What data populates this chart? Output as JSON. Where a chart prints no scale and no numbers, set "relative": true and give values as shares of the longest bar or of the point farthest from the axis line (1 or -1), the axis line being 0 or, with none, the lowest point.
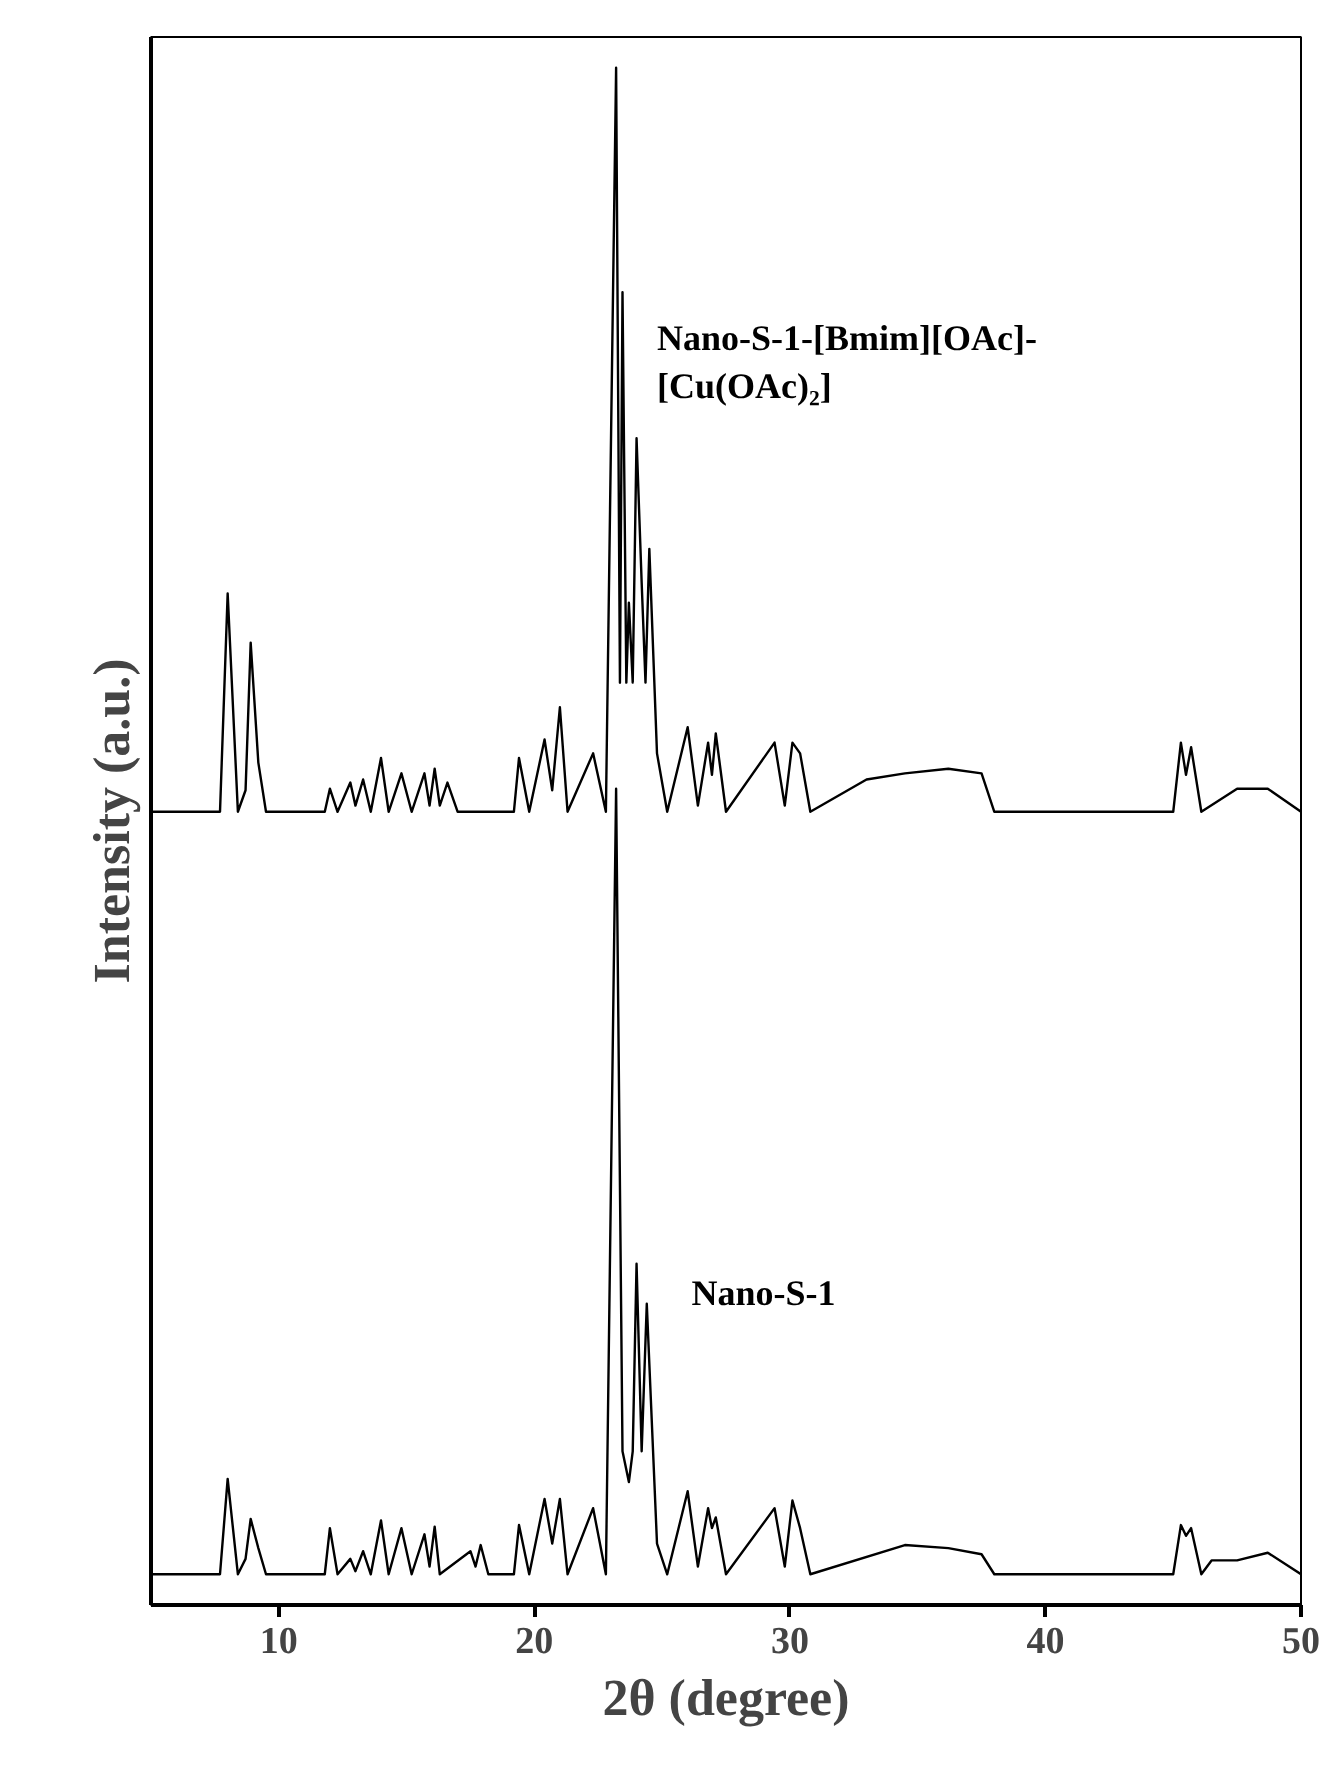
{
  "chart_data": {
    "type": "line",
    "relative": true,
    "xlabel": "2θ (degree)",
    "ylabel": "Intensity (a.u.)",
    "xlim": [
      5,
      50
    ],
    "xticks": [
      10,
      20,
      30,
      40,
      50
    ],
    "grid": false,
    "series": [
      {
        "name": "Nano-S-1-[Bmim][OAc]-[Cu(OAc)₂]",
        "color": "#000000",
        "x": [
          5,
          7.7,
          8.0,
          8.4,
          8.7,
          8.9,
          9.2,
          9.5,
          11.8,
          12.0,
          12.3,
          12.8,
          13.0,
          13.3,
          13.6,
          14.0,
          14.3,
          14.8,
          15.2,
          15.7,
          15.9,
          16.1,
          16.3,
          16.6,
          17,
          19.2,
          19.4,
          19.8,
          20.4,
          20.7,
          21.0,
          21.3,
          22.3,
          22.8,
          23.2,
          23.35,
          23.45,
          23.6,
          23.7,
          23.85,
          24.0,
          24.2,
          24.35,
          24.5,
          24.8,
          25.2,
          26.0,
          26.4,
          26.8,
          26.95,
          27.1,
          27.5,
          29.4,
          29.8,
          30.1,
          30.4,
          30.8,
          33,
          34.5,
          36.2,
          37.5,
          38,
          45.0,
          45.3,
          45.5,
          45.7,
          46.1,
          47.5,
          48.7,
          50
        ],
        "values": [
          0.516,
          0.516,
          0.658,
          0.516,
          0.53,
          0.626,
          0.548,
          0.516,
          0.516,
          0.531,
          0.516,
          0.535,
          0.52,
          0.537,
          0.516,
          0.551,
          0.516,
          0.541,
          0.516,
          0.541,
          0.52,
          0.544,
          0.52,
          0.535,
          0.516,
          0.516,
          0.551,
          0.516,
          0.563,
          0.53,
          0.584,
          0.516,
          0.554,
          0.516,
          1.0,
          0.6,
          0.854,
          0.6,
          0.652,
          0.6,
          0.759,
          0.665,
          0.6,
          0.687,
          0.554,
          0.516,
          0.571,
          0.52,
          0.561,
          0.54,
          0.567,
          0.516,
          0.561,
          0.52,
          0.561,
          0.554,
          0.516,
          0.537,
          0.541,
          0.544,
          0.541,
          0.516,
          0.516,
          0.561,
          0.54,
          0.558,
          0.516,
          0.531,
          0.531,
          0.516
        ]
      },
      {
        "name": "Nano-S-1",
        "color": "#000000",
        "x": [
          5,
          7.7,
          8.0,
          8.4,
          8.7,
          8.9,
          9.2,
          9.5,
          11.8,
          12.0,
          12.3,
          12.8,
          13.0,
          13.3,
          13.6,
          14.0,
          14.3,
          14.8,
          15.2,
          15.7,
          15.9,
          16.1,
          16.3,
          17.5,
          17.7,
          17.9,
          18.2,
          19.2,
          19.4,
          19.8,
          20.4,
          20.7,
          21.0,
          21.3,
          22.3,
          22.8,
          23.2,
          23.45,
          23.7,
          23.85,
          24.0,
          24.2,
          24.4,
          24.8,
          25.2,
          26.0,
          26.4,
          26.8,
          26.95,
          27.1,
          27.5,
          29.4,
          29.8,
          30.1,
          30.4,
          30.8,
          34.5,
          36.2,
          37.5,
          38,
          45.0,
          45.3,
          45.5,
          45.7,
          46.1,
          46.5,
          47.5,
          48.7,
          50
        ],
        "values": [
          0.02,
          0.02,
          0.082,
          0.02,
          0.03,
          0.056,
          0.037,
          0.02,
          0.02,
          0.05,
          0.02,
          0.03,
          0.022,
          0.035,
          0.02,
          0.055,
          0.02,
          0.05,
          0.02,
          0.046,
          0.025,
          0.051,
          0.02,
          0.035,
          0.025,
          0.039,
          0.02,
          0.02,
          0.052,
          0.02,
          0.069,
          0.04,
          0.069,
          0.02,
          0.063,
          0.02,
          0.531,
          0.1,
          0.08,
          0.1,
          0.222,
          0.1,
          0.196,
          0.04,
          0.02,
          0.074,
          0.025,
          0.063,
          0.05,
          0.057,
          0.02,
          0.063,
          0.025,
          0.068,
          0.05,
          0.02,
          0.039,
          0.037,
          0.033,
          0.02,
          0.02,
          0.052,
          0.045,
          0.05,
          0.02,
          0.029,
          0.029,
          0.034,
          0.02
        ]
      }
    ]
  }
}
